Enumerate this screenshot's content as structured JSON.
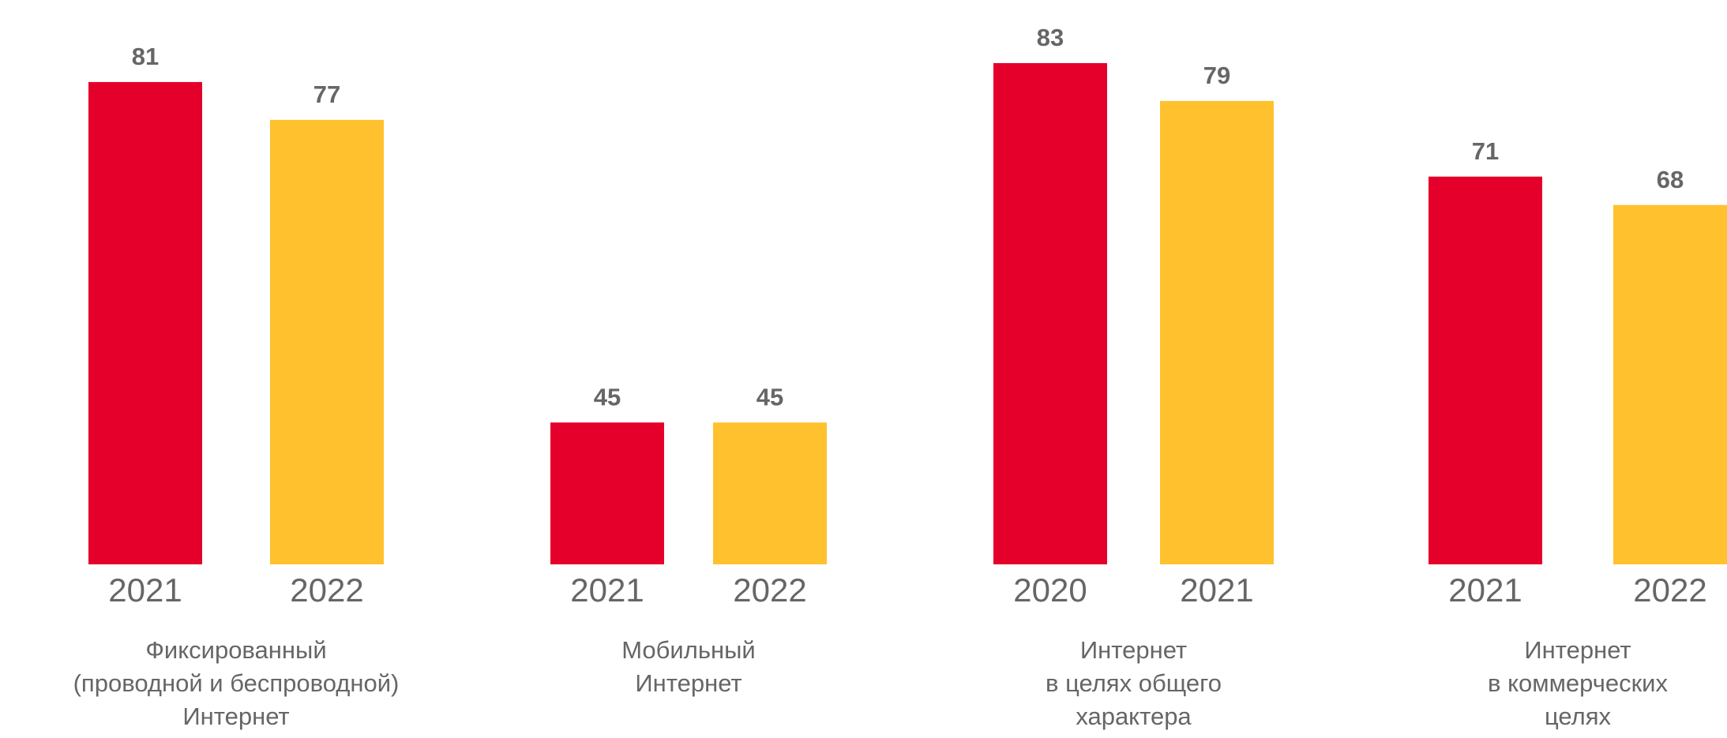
{
  "chart_data": {
    "type": "bar",
    "colors": [
      "#e4002b",
      "#ffc12d"
    ],
    "ylim": [
      30,
      85
    ],
    "groups": [
      {
        "label": [
          "Фиксированный",
          "(проводной и беспроводной)",
          "Интернет"
        ],
        "categories": [
          "2021",
          "2022"
        ],
        "values": [
          81,
          77
        ]
      },
      {
        "label": [
          "Мобильный",
          "Интернет"
        ],
        "categories": [
          "2021",
          "2022"
        ],
        "values": [
          45,
          45
        ]
      },
      {
        "label": [
          "Интернет",
          "в целях общего",
          "характера"
        ],
        "categories": [
          "2020",
          "2021"
        ],
        "values": [
          83,
          79
        ]
      },
      {
        "label": [
          "Интернет",
          "в коммерческих",
          "целях"
        ],
        "categories": [
          "2021",
          "2022"
        ],
        "values": [
          71,
          68
        ]
      }
    ]
  }
}
